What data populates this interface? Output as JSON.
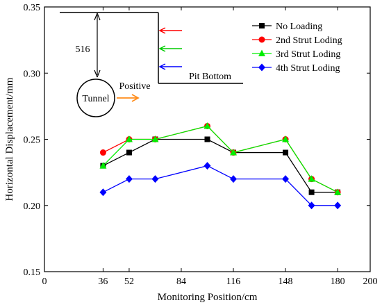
{
  "chart_data": {
    "type": "line",
    "xlabel": "Monitoring Position/cm",
    "ylabel": "Horizontal Displacement/mm",
    "xlim": [
      0,
      200
    ],
    "ylim": [
      0.15,
      0.35
    ],
    "xticks": [
      0,
      36,
      52,
      84,
      116,
      148,
      180,
      200
    ],
    "yticks": [
      0.15,
      0.2,
      0.25,
      0.3,
      0.35
    ],
    "ytick_labels": [
      "0.15",
      "0.20",
      "0.25",
      "0.30",
      "0.35"
    ],
    "grid": false,
    "legend_position": "top-right",
    "x": [
      36,
      52,
      68,
      100,
      116,
      148,
      164,
      180
    ],
    "series": [
      {
        "name": "No Loading",
        "color": "#000000",
        "marker": "square",
        "values": [
          0.23,
          0.24,
          0.25,
          0.25,
          0.24,
          0.24,
          0.21,
          0.21
        ]
      },
      {
        "name": "2nd Strut Loding",
        "color": "#ff0000",
        "marker": "circle",
        "values": [
          0.24,
          0.25,
          0.25,
          0.26,
          0.24,
          0.25,
          0.22,
          0.21
        ]
      },
      {
        "name": "3rd Strut Loding",
        "color": "#00ee00",
        "marker": "triangle",
        "values": [
          0.23,
          0.25,
          0.25,
          0.26,
          0.24,
          0.25,
          0.22,
          0.21
        ]
      },
      {
        "name": "4th Strut Loding",
        "color": "#0000ff",
        "marker": "diamond",
        "values": [
          0.21,
          0.22,
          0.22,
          0.23,
          0.22,
          0.22,
          0.2,
          0.2
        ]
      }
    ],
    "annotations": {
      "depth": "516",
      "tunnel": "Tunnel",
      "direction": "Positive",
      "pit": "Pit Bottom",
      "arrow_colors": [
        "#ff0000",
        "#00cc00",
        "#0000ff"
      ],
      "positive_arrow_color": "#ff8c1a"
    }
  }
}
